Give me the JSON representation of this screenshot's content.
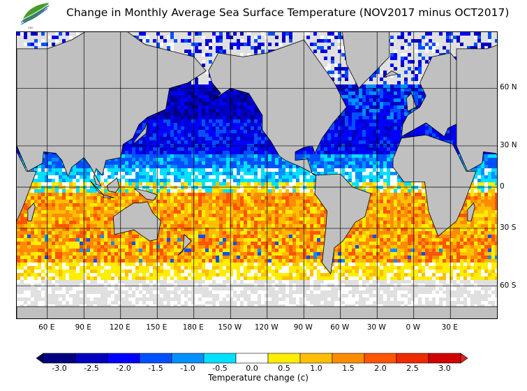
{
  "title": "Change in Monthly Average Sea Surface Temperature (NOV2017 minus OCT2017)",
  "logo": {
    "text": "香港天文台 HKO"
  },
  "map": {
    "projection": "mercator",
    "lon_labels": [
      "60 E",
      "90 E",
      "120 E",
      "150 E",
      "180 E",
      "150 W",
      "120 W",
      "90 W",
      "60 W",
      "30 W",
      "0 W",
      "30 E"
    ],
    "lat_labels": [
      "60 N",
      "30 N",
      "0",
      "30 S",
      "60 S"
    ],
    "land_color": "#c0c0c0",
    "sea_ice_color": "#e0e0e0"
  },
  "colorbar": {
    "title": "Temperature change  (c)",
    "ticks": [
      "-3.0",
      "-2.5",
      "-2.0",
      "-1.5",
      "-1.0",
      "-0.5",
      "0.0",
      "0.5",
      "1.0",
      "1.5",
      "2.0",
      "2.5",
      "3.0"
    ],
    "colors": [
      "#000080",
      "#0000c0",
      "#0000ff",
      "#0050ff",
      "#0090ff",
      "#00e0ff",
      "#ffffff",
      "#ffee00",
      "#ffbf00",
      "#ff8c00",
      "#ff5500",
      "#ee2a00",
      "#d00000"
    ]
  }
}
